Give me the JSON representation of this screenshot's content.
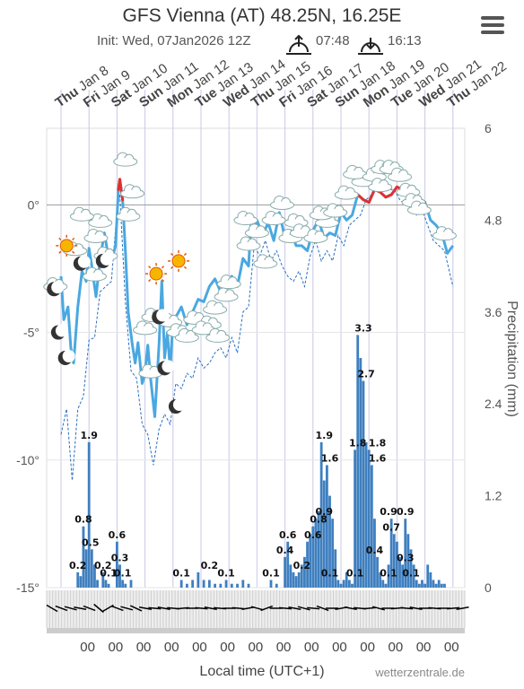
{
  "header": {
    "title": "GFS Vienna (AT) 48.25N, 16.25E",
    "init": "Init: Wed, 07Jan2026 12Z",
    "sunrise": "07:48",
    "sunset": "16:13"
  },
  "footer": {
    "xlabel": "Local time (UTC+1)",
    "credit": "wetterzentrale.de"
  },
  "icons": {
    "menu": "hamburger-menu-icon",
    "sunrise": "sunrise-icon",
    "sunset": "sunset-icon"
  },
  "colors": {
    "temperature": "#4aa8e0",
    "temp_above_zero": "#e03030",
    "precip": "#3f7fbf",
    "dewpoint": "#2a6fbf"
  },
  "chart_data": {
    "type": "line",
    "title": "GFS Vienna (AT) 48.25N, 16.25E",
    "days": [
      {
        "dow": "Thu",
        "date": "Jan 8"
      },
      {
        "dow": "Fri",
        "date": "Jan 9"
      },
      {
        "dow": "Sat",
        "date": "Jan 10"
      },
      {
        "dow": "Sun",
        "date": "Jan 11"
      },
      {
        "dow": "Mon",
        "date": "Jan 12"
      },
      {
        "dow": "Tue",
        "date": "Jan 13"
      },
      {
        "dow": "Wed",
        "date": "Jan 14"
      },
      {
        "dow": "Thu",
        "date": "Jan 15"
      },
      {
        "dow": "Fri",
        "date": "Jan 16"
      },
      {
        "dow": "Sat",
        "date": "Jan 17"
      },
      {
        "dow": "Sun",
        "date": "Jan 18"
      },
      {
        "dow": "Mon",
        "date": "Jan 19"
      },
      {
        "dow": "Tue",
        "date": "Jan 20"
      },
      {
        "dow": "Wed",
        "date": "Jan 21"
      },
      {
        "dow": "Thu",
        "date": "Jan 22"
      }
    ],
    "x_unit": "days since Jan 8 00:00 local",
    "left_axis": {
      "ticks": [
        "0°",
        "-5°",
        "-10°",
        "-15°"
      ],
      "values": [
        0,
        -5,
        -10,
        -15
      ],
      "ylim": [
        -15,
        3
      ]
    },
    "right_axis": {
      "label": "Precipitation (mm)",
      "ticks": [
        "6",
        "4.8",
        "3.6",
        "2.4",
        "1.2",
        "0"
      ],
      "values": [
        6,
        4.8,
        3.6,
        2.4,
        1.2,
        0
      ]
    },
    "temperature": {
      "x": [
        0.0,
        0.1,
        0.25,
        0.35,
        0.45,
        0.6,
        0.75,
        0.9,
        1.0,
        1.1,
        1.25,
        1.4,
        1.55,
        1.7,
        1.85,
        1.95,
        2.05,
        2.1,
        2.2,
        2.3,
        2.4,
        2.55,
        2.65,
        2.75,
        2.9,
        3.0,
        3.1,
        3.2,
        3.35,
        3.5,
        3.6,
        3.7,
        3.8,
        3.9,
        4.0,
        4.15,
        4.3,
        4.5,
        4.7,
        4.9,
        5.1,
        5.3,
        5.5,
        5.7,
        5.9,
        6.1,
        6.3,
        6.5,
        6.7,
        6.8,
        6.9,
        7.0,
        7.2,
        7.4,
        7.6,
        7.8,
        8.0,
        8.2,
        8.4,
        8.6,
        8.8,
        9.0,
        9.2,
        9.4,
        9.6,
        9.8,
        10.0,
        10.2,
        10.4,
        10.6,
        10.8,
        11.0,
        11.2,
        11.4,
        11.6,
        11.8,
        12.0,
        12.2,
        12.4,
        12.6,
        12.8,
        13.0,
        13.2,
        13.4,
        13.6,
        13.8,
        14.0
      ],
      "values": [
        -2.8,
        -4.5,
        -4.0,
        -5.6,
        -6.2,
        -4.0,
        -2.6,
        -3.0,
        -1.7,
        -2.4,
        -3.6,
        -2.1,
        -1.1,
        -2.1,
        -2.0,
        -1.6,
        0.6,
        1.0,
        0.2,
        -1.8,
        -4.2,
        -5.5,
        -6.2,
        -5.4,
        -7.0,
        -6.6,
        -5.5,
        -6.8,
        -8.3,
        -5.5,
        -3.0,
        -6.0,
        -5.0,
        -6.5,
        -4.5,
        -4.3,
        -4.0,
        -4.7,
        -4.2,
        -3.7,
        -3.8,
        -3.2,
        -2.9,
        -3.4,
        -3.0,
        -2.8,
        -3.2,
        -2.1,
        -2.4,
        -0.5,
        -0.9,
        -0.6,
        -1.2,
        -0.7,
        -1.4,
        -0.3,
        -1.3,
        -1.0,
        -1.6,
        -1.6,
        -1.8,
        -1.0,
        -0.6,
        -1.3,
        -1.1,
        -1.2,
        -0.3,
        -0.6,
        -0.4,
        0.4,
        0.2,
        0.1,
        0.6,
        0.5,
        0.3,
        0.4,
        0.7,
        0.6,
        0.3,
        0.5,
        0.2,
        0.1,
        -0.6,
        -0.8,
        -1.1,
        -1.9,
        -1.6
      ]
    },
    "dewpoint": {
      "x": [
        0.0,
        0.2,
        0.4,
        0.6,
        0.8,
        1.0,
        1.2,
        1.4,
        1.6,
        1.8,
        2.0,
        2.1,
        2.3,
        2.5,
        2.7,
        2.9,
        3.1,
        3.3,
        3.5,
        3.7,
        3.9,
        4.1,
        4.3,
        4.5,
        4.7,
        4.9,
        5.1,
        5.3,
        5.5,
        5.7,
        5.9,
        6.1,
        6.3,
        6.5,
        6.7,
        6.9,
        7.1,
        7.3,
        7.5,
        7.7,
        7.9,
        8.1,
        8.3,
        8.5,
        8.7,
        8.9,
        9.1,
        9.3,
        9.5,
        9.7,
        9.9,
        10.1,
        10.3,
        10.5,
        10.7,
        10.9,
        11.1,
        11.3,
        11.5,
        11.7,
        11.9,
        12.1,
        12.3,
        12.5,
        12.7,
        12.9,
        13.1,
        13.3,
        13.5,
        13.7,
        14.0
      ],
      "values": [
        -9.0,
        -8.0,
        -10.8,
        -8.0,
        -7.5,
        -5.3,
        -5.2,
        -3.4,
        -3.2,
        -3.0,
        -0.2,
        0.4,
        -3.8,
        -6.5,
        -6.8,
        -8.6,
        -9.0,
        -10.2,
        -8.8,
        -8.2,
        -8.6,
        -7.0,
        -7.2,
        -6.6,
        -6.8,
        -6.0,
        -6.4,
        -6.2,
        -5.8,
        -5.6,
        -6.0,
        -5.2,
        -5.8,
        -4.2,
        -4.0,
        -1.6,
        -2.0,
        -1.4,
        -2.2,
        -1.8,
        -2.4,
        -2.8,
        -3.0,
        -2.6,
        -3.2,
        -2.0,
        -1.4,
        -2.2,
        -1.8,
        -2.2,
        -1.2,
        -1.6,
        -0.8,
        -0.6,
        -0.4,
        0.2,
        0.4,
        0.6,
        0.8,
        0.6,
        0.6,
        0.2,
        0.0,
        0.2,
        -0.4,
        -0.2,
        -0.8,
        -1.4,
        -1.6,
        -1.8,
        -3.2
      ]
    },
    "precipitation": {
      "x": [
        0.6,
        0.7,
        0.8,
        0.9,
        1.0,
        1.1,
        1.2,
        1.3,
        1.5,
        1.6,
        1.7,
        2.0,
        2.1,
        2.2,
        2.3,
        2.5,
        4.3,
        4.5,
        4.7,
        4.9,
        5.1,
        5.3,
        5.5,
        5.7,
        5.9,
        6.1,
        6.3,
        6.5,
        6.7,
        7.5,
        7.7,
        8.0,
        8.1,
        8.2,
        8.3,
        8.4,
        8.5,
        8.6,
        8.7,
        8.8,
        8.9,
        9.0,
        9.1,
        9.2,
        9.3,
        9.4,
        9.5,
        9.6,
        9.7,
        9.8,
        9.9,
        10.0,
        10.1,
        10.2,
        10.3,
        10.4,
        10.5,
        10.6,
        10.7,
        10.8,
        10.9,
        11.0,
        11.1,
        11.2,
        11.3,
        11.4,
        11.5,
        11.6,
        11.7,
        11.8,
        11.9,
        12.0,
        12.1,
        12.2,
        12.3,
        12.4,
        12.5,
        12.6,
        12.7,
        12.8,
        12.9,
        13.0,
        13.1,
        13.2,
        13.3,
        13.4,
        13.5,
        13.6,
        13.7
      ],
      "values": [
        0.2,
        0.15,
        0.8,
        0.5,
        1.9,
        0.5,
        0.3,
        0.1,
        0.2,
        0.1,
        0.05,
        0.6,
        0.3,
        0.1,
        0.05,
        0.1,
        0.1,
        0.05,
        0.1,
        0.2,
        0.1,
        0.1,
        0.05,
        0.05,
        0.1,
        0.05,
        0.05,
        0.1,
        0.05,
        0.1,
        0.05,
        0.4,
        0.6,
        0.3,
        0.2,
        0.15,
        0.2,
        0.3,
        0.4,
        0.6,
        0.7,
        0.8,
        0.9,
        1.0,
        1.9,
        1.4,
        1.6,
        1.2,
        0.9,
        0.5,
        0.1,
        0.05,
        0.1,
        0.2,
        0.1,
        0.05,
        1.8,
        3.3,
        3.0,
        2.7,
        1.9,
        1.8,
        1.6,
        0.9,
        0.4,
        0.2,
        0.1,
        0.05,
        0.3,
        0.9,
        0.7,
        0.6,
        0.4,
        0.3,
        0.9,
        0.7,
        0.5,
        0.3,
        0.1,
        0.05,
        0.1,
        0.05,
        0.3,
        0.2,
        0.1,
        0.05,
        0.1,
        0.05,
        0.05
      ],
      "labels": [
        {
          "x": 1.0,
          "v": 1.9,
          "text": "1.9"
        },
        {
          "x": 0.8,
          "v": 0.8,
          "text": "0.8"
        },
        {
          "x": 1.05,
          "v": 0.5,
          "text": "0.5"
        },
        {
          "x": 0.6,
          "v": 0.2,
          "text": "0.2"
        },
        {
          "x": 1.5,
          "v": 0.2,
          "text": "0.2"
        },
        {
          "x": 1.7,
          "v": 0.1,
          "text": "0.1"
        },
        {
          "x": 2.0,
          "v": 0.6,
          "text": "0.6"
        },
        {
          "x": 2.1,
          "v": 0.3,
          "text": "0.3"
        },
        {
          "x": 2.2,
          "v": 0.1,
          "text": "0.1"
        },
        {
          "x": 4.3,
          "v": 0.1,
          "text": "0.1"
        },
        {
          "x": 5.3,
          "v": 0.2,
          "text": "0.2"
        },
        {
          "x": 5.9,
          "v": 0.1,
          "text": "0.1"
        },
        {
          "x": 7.5,
          "v": 0.1,
          "text": "0.1"
        },
        {
          "x": 8.1,
          "v": 0.6,
          "text": "0.6"
        },
        {
          "x": 8.0,
          "v": 0.4,
          "text": "0.4"
        },
        {
          "x": 8.6,
          "v": 0.2,
          "text": "0.2"
        },
        {
          "x": 9.0,
          "v": 0.6,
          "text": "0.6"
        },
        {
          "x": 9.2,
          "v": 0.8,
          "text": "0.8"
        },
        {
          "x": 9.4,
          "v": 0.9,
          "text": "0.9"
        },
        {
          "x": 9.4,
          "v": 1.9,
          "text": "1.9"
        },
        {
          "x": 9.6,
          "v": 1.6,
          "text": "1.6"
        },
        {
          "x": 9.6,
          "v": 0.1,
          "text": "0.1"
        },
        {
          "x": 10.5,
          "v": 0.1,
          "text": "0.1"
        },
        {
          "x": 10.6,
          "v": 1.8,
          "text": "1.8"
        },
        {
          "x": 10.8,
          "v": 3.3,
          "text": "3.3"
        },
        {
          "x": 10.9,
          "v": 2.7,
          "text": "2.7"
        },
        {
          "x": 11.3,
          "v": 1.8,
          "text": "1.8"
        },
        {
          "x": 11.3,
          "v": 1.6,
          "text": "1.6"
        },
        {
          "x": 11.2,
          "v": 0.4,
          "text": "0.4"
        },
        {
          "x": 11.7,
          "v": 0.9,
          "text": "0.9"
        },
        {
          "x": 11.7,
          "v": 0.1,
          "text": "0.1"
        },
        {
          "x": 11.8,
          "v": 0.7,
          "text": "0.7"
        },
        {
          "x": 12.3,
          "v": 0.9,
          "text": "0.9"
        },
        {
          "x": 12.3,
          "v": 0.3,
          "text": "0.3"
        },
        {
          "x": 12.5,
          "v": 0.1,
          "text": "0.1"
        }
      ]
    },
    "hour_ticks": [
      "00",
      "00",
      "00",
      "00",
      "00",
      "00",
      "00",
      "00",
      "00",
      "00",
      "00",
      "00",
      "00",
      "00",
      "00"
    ],
    "grid": true
  }
}
